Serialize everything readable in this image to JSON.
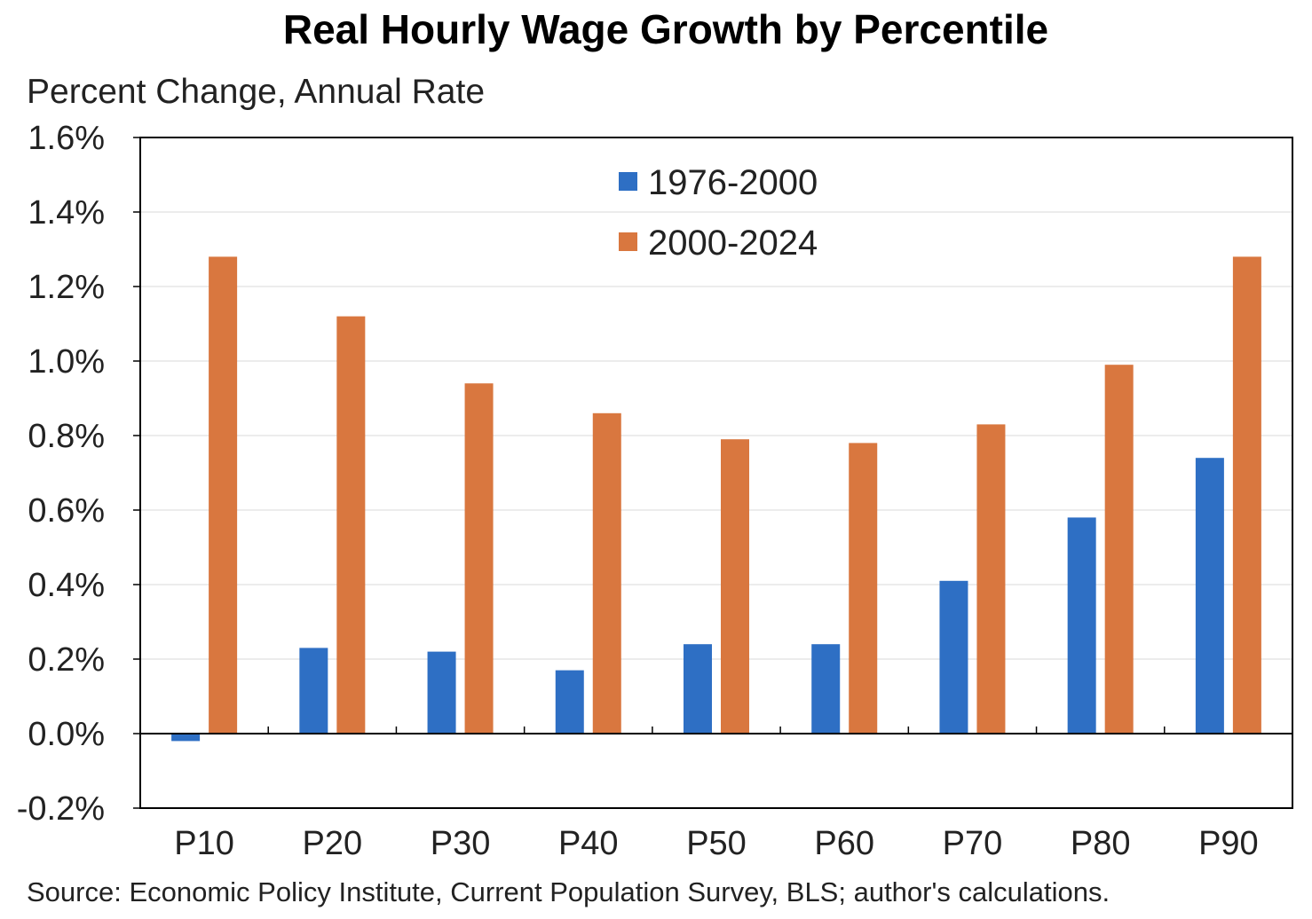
{
  "chart_data": {
    "type": "bar",
    "title": "Real Hourly Wage Growth by Percentile",
    "ylabel": "Percent Change, Annual Rate",
    "xlabel": "",
    "categories": [
      "P10",
      "P20",
      "P30",
      "P40",
      "P50",
      "P60",
      "P70",
      "P80",
      "P90"
    ],
    "series": [
      {
        "name": "1976-2000",
        "color": "#2e6fc4",
        "values": [
          -0.02,
          0.23,
          0.22,
          0.17,
          0.24,
          0.24,
          0.41,
          0.58,
          0.74
        ]
      },
      {
        "name": "2000-2024",
        "color": "#d9773f",
        "values": [
          1.28,
          1.12,
          0.94,
          0.86,
          0.79,
          0.78,
          0.83,
          0.99,
          1.28
        ]
      }
    ],
    "ylim": [
      -0.2,
      1.6
    ],
    "yticks": [
      -0.2,
      0.0,
      0.2,
      0.4,
      0.6,
      0.8,
      1.0,
      1.2,
      1.4,
      1.6
    ],
    "ytick_labels": [
      "-0.2%",
      "0.0%",
      "0.2%",
      "0.4%",
      "0.6%",
      "0.8%",
      "1.0%",
      "1.2%",
      "1.4%",
      "1.6%"
    ],
    "grid": true,
    "legend_position": "top-center",
    "source": "Source: Economic Policy Institute, Current Population Survey, BLS; author's calculations."
  }
}
